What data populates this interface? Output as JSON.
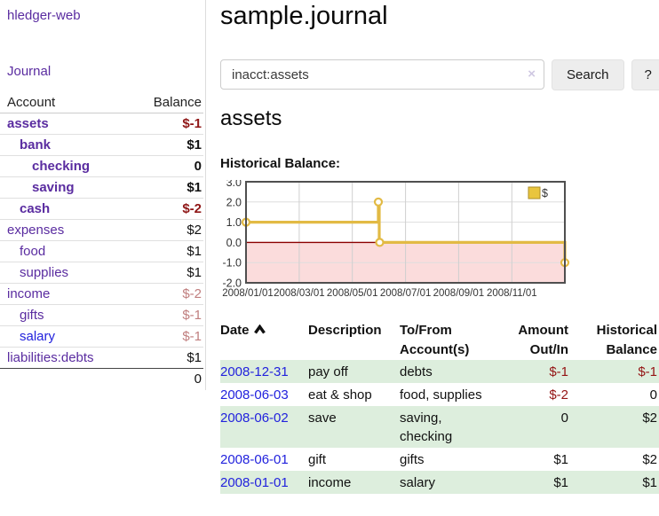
{
  "app": {
    "brand": "hledger-web",
    "nav_journal": "Journal"
  },
  "sidebar": {
    "headers": {
      "account": "Account",
      "balance": "Balance"
    },
    "accounts": [
      {
        "name": "assets",
        "balance": "$-1",
        "indent": 1,
        "bold": true,
        "balance_style": "neg-strong",
        "link": "purple"
      },
      {
        "name": "bank",
        "balance": "$1",
        "indent": 2,
        "bold": true,
        "balance_style": "pos",
        "link": "purple"
      },
      {
        "name": "checking",
        "balance": "0",
        "indent": 3,
        "bold": true,
        "balance_style": "pos",
        "link": "purple"
      },
      {
        "name": "saving",
        "balance": "$1",
        "indent": 3,
        "bold": true,
        "balance_style": "pos",
        "link": "purple"
      },
      {
        "name": "cash",
        "balance": "$-2",
        "indent": 2,
        "bold": true,
        "balance_style": "neg-strong",
        "link": "purple"
      },
      {
        "name": "expenses",
        "balance": "$2",
        "indent": 1,
        "bold": false,
        "balance_style": "pos",
        "link": "purple"
      },
      {
        "name": "food",
        "balance": "$1",
        "indent": 2,
        "bold": false,
        "balance_style": "pos",
        "link": "purple"
      },
      {
        "name": "supplies",
        "balance": "$1",
        "indent": 2,
        "bold": false,
        "balance_style": "pos",
        "link": "purple"
      },
      {
        "name": "income",
        "balance": "$-2",
        "indent": 1,
        "bold": false,
        "balance_style": "neg-soft",
        "link": "purple"
      },
      {
        "name": "gifts",
        "balance": "$-1",
        "indent": 2,
        "bold": false,
        "balance_style": "neg-soft",
        "link": "purple"
      },
      {
        "name": "salary",
        "balance": "$-1",
        "indent": 2,
        "bold": false,
        "balance_style": "neg-soft",
        "link": "blue"
      },
      {
        "name": "liabilities:debts",
        "balance": "$1",
        "indent": 1,
        "bold": false,
        "balance_style": "pos",
        "link": "purple"
      }
    ],
    "total": "0"
  },
  "header": {
    "title": "sample.journal"
  },
  "search": {
    "value": "inacct:assets",
    "clear_icon": "×",
    "button_label": "Search",
    "help_label": "?"
  },
  "account_page": {
    "title": "assets",
    "chart_label": "Historical Balance:"
  },
  "chart_data": {
    "type": "line",
    "title": "Historical Balance",
    "step": true,
    "series": [
      {
        "name": "$",
        "x": [
          "2008-01-01",
          "2008-06-01",
          "2008-06-02",
          "2008-06-03",
          "2008-12-31"
        ],
        "values": [
          1,
          2,
          2,
          0,
          -1
        ]
      }
    ],
    "ylim": [
      -2.0,
      3.0
    ],
    "ytick_labels": [
      "3.0",
      "2.0",
      "1.0",
      "0.0",
      "-1.0",
      "-2.0"
    ],
    "xtick_labels": [
      "2008/01/01",
      "2008/03/01",
      "2008/05/01",
      "2008/07/01",
      "2008/09/01",
      "2008/11/01"
    ],
    "legend": "$",
    "legend_position": "top-right",
    "grid": true,
    "colors": {
      "line": "#e2ba44",
      "negative_area": "#fbdcdc",
      "zero_line": "#8b0000"
    }
  },
  "register": {
    "headers": {
      "date": "Date",
      "description": "Description",
      "accounts": [
        "To/From",
        "Account(s)"
      ],
      "amount": [
        "Amount",
        "Out/In"
      ],
      "balance": [
        "Historical",
        "Balance"
      ]
    },
    "rows": [
      {
        "date": "2008-12-31",
        "description": "pay off",
        "accounts": [
          "debts"
        ],
        "amount": "$-1",
        "amount_neg": true,
        "balance": "$-1",
        "balance_neg": true,
        "shaded": true
      },
      {
        "date": "2008-06-03",
        "description": "eat & shop",
        "accounts": [
          "food, supplies"
        ],
        "amount": "$-2",
        "amount_neg": true,
        "balance": "0",
        "balance_neg": false,
        "shaded": false
      },
      {
        "date": "2008-06-02",
        "description": "save",
        "accounts": [
          "saving,",
          "checking"
        ],
        "amount": "0",
        "amount_neg": false,
        "balance": "$2",
        "balance_neg": false,
        "shaded": true
      },
      {
        "date": "2008-06-01",
        "description": "gift",
        "accounts": [
          "gifts"
        ],
        "amount": "$1",
        "amount_neg": false,
        "balance": "$2",
        "balance_neg": false,
        "shaded": false
      },
      {
        "date": "2008-01-01",
        "description": "income",
        "accounts": [
          "salary"
        ],
        "amount": "$1",
        "amount_neg": false,
        "balance": "$1",
        "balance_neg": false,
        "shaded": true
      }
    ]
  }
}
